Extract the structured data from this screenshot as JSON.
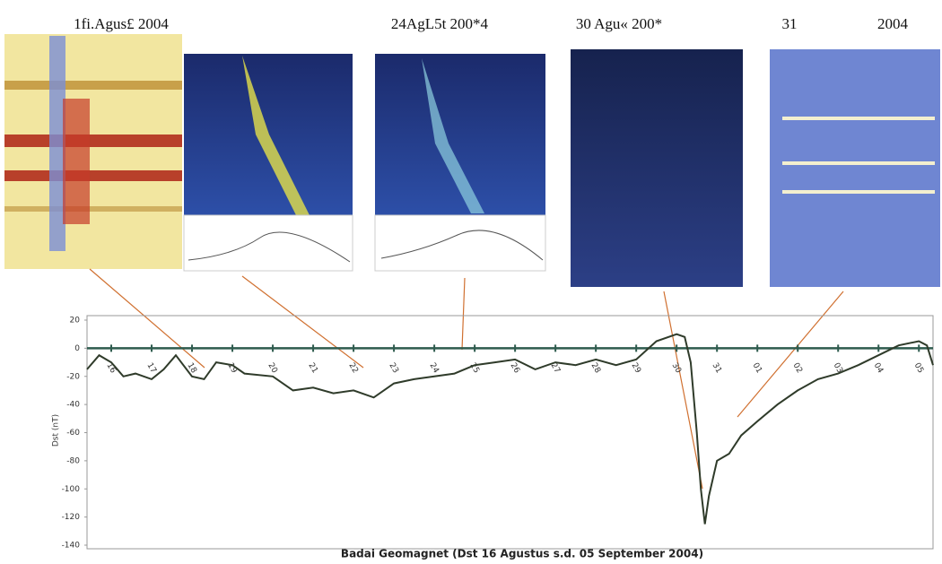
{
  "panel_labels": [
    "1fi.Agus£ 2004",
    "24AgL5t 200*4",
    "30 Agu« 200*",
    "31",
    "2004"
  ],
  "chart_data": {
    "type": "line",
    "title": "Badai Geomagnet (Dst 16 Agustus s.d. 05 September 2004)",
    "y_label": "Dst (nT)",
    "x": [
      -0.6,
      -0.3,
      0,
      0.3,
      0.6,
      1,
      1.3,
      1.6,
      2,
      2.3,
      2.6,
      3,
      3.3,
      4,
      4.5,
      5,
      5.5,
      6,
      6.5,
      7,
      7.5,
      8,
      8.5,
      9,
      9.5,
      10,
      10.5,
      11,
      11.5,
      12,
      12.5,
      13,
      13.5,
      14,
      14.2,
      14.35,
      14.5,
      14.6,
      14.7,
      14.8,
      15,
      15.3,
      15.6,
      16,
      16.5,
      17,
      17.5,
      18,
      18.5,
      19,
      19.5,
      20,
      20.2,
      20.35
    ],
    "series": [
      {
        "color": "#2f3b2a",
        "values": [
          -15,
          -5,
          -10,
          -20,
          -18,
          -22,
          -15,
          -5,
          -20,
          -22,
          -10,
          -12,
          -18,
          -20,
          -30,
          -28,
          -32,
          -30,
          -35,
          -25,
          -22,
          -20,
          -18,
          -12,
          -10,
          -8,
          -15,
          -10,
          -12,
          -8,
          -12,
          -8,
          5,
          10,
          8,
          -10,
          -60,
          -100,
          -125,
          -105,
          -80,
          -75,
          -62,
          -52,
          -40,
          -30,
          -22,
          -18,
          -12,
          -5,
          2,
          5,
          2,
          -12
        ]
      }
    ],
    "xlim": [
      -0.6,
      20.35
    ],
    "xticks": [
      {
        "value": 0,
        "label": "16"
      },
      {
        "value": 1,
        "label": "17"
      },
      {
        "value": 2,
        "label": "18"
      },
      {
        "value": 3,
        "label": "19"
      },
      {
        "value": 4,
        "label": "20"
      },
      {
        "value": 5,
        "label": "21"
      },
      {
        "value": 6,
        "label": "22"
      },
      {
        "value": 7,
        "label": "23"
      },
      {
        "value": 8,
        "label": "24"
      },
      {
        "value": 9,
        "label": "25"
      },
      {
        "value": 10,
        "label": "26"
      },
      {
        "value": 11,
        "label": "27"
      },
      {
        "value": 12,
        "label": "28"
      },
      {
        "value": 13,
        "label": "29"
      },
      {
        "value": 14,
        "label": "30"
      },
      {
        "value": 15,
        "label": "31"
      },
      {
        "value": 16,
        "label": "01"
      },
      {
        "value": 17,
        "label": "02"
      },
      {
        "value": 18,
        "label": "03"
      },
      {
        "value": 19,
        "label": "04"
      },
      {
        "value": 20,
        "label": "05"
      }
    ],
    "ylim": [
      -140,
      20
    ],
    "yticks": [
      20,
      0,
      -20,
      -40,
      -60,
      -80,
      -100,
      -120,
      -140
    ],
    "zero_line_color": "#2e5b4e"
  }
}
